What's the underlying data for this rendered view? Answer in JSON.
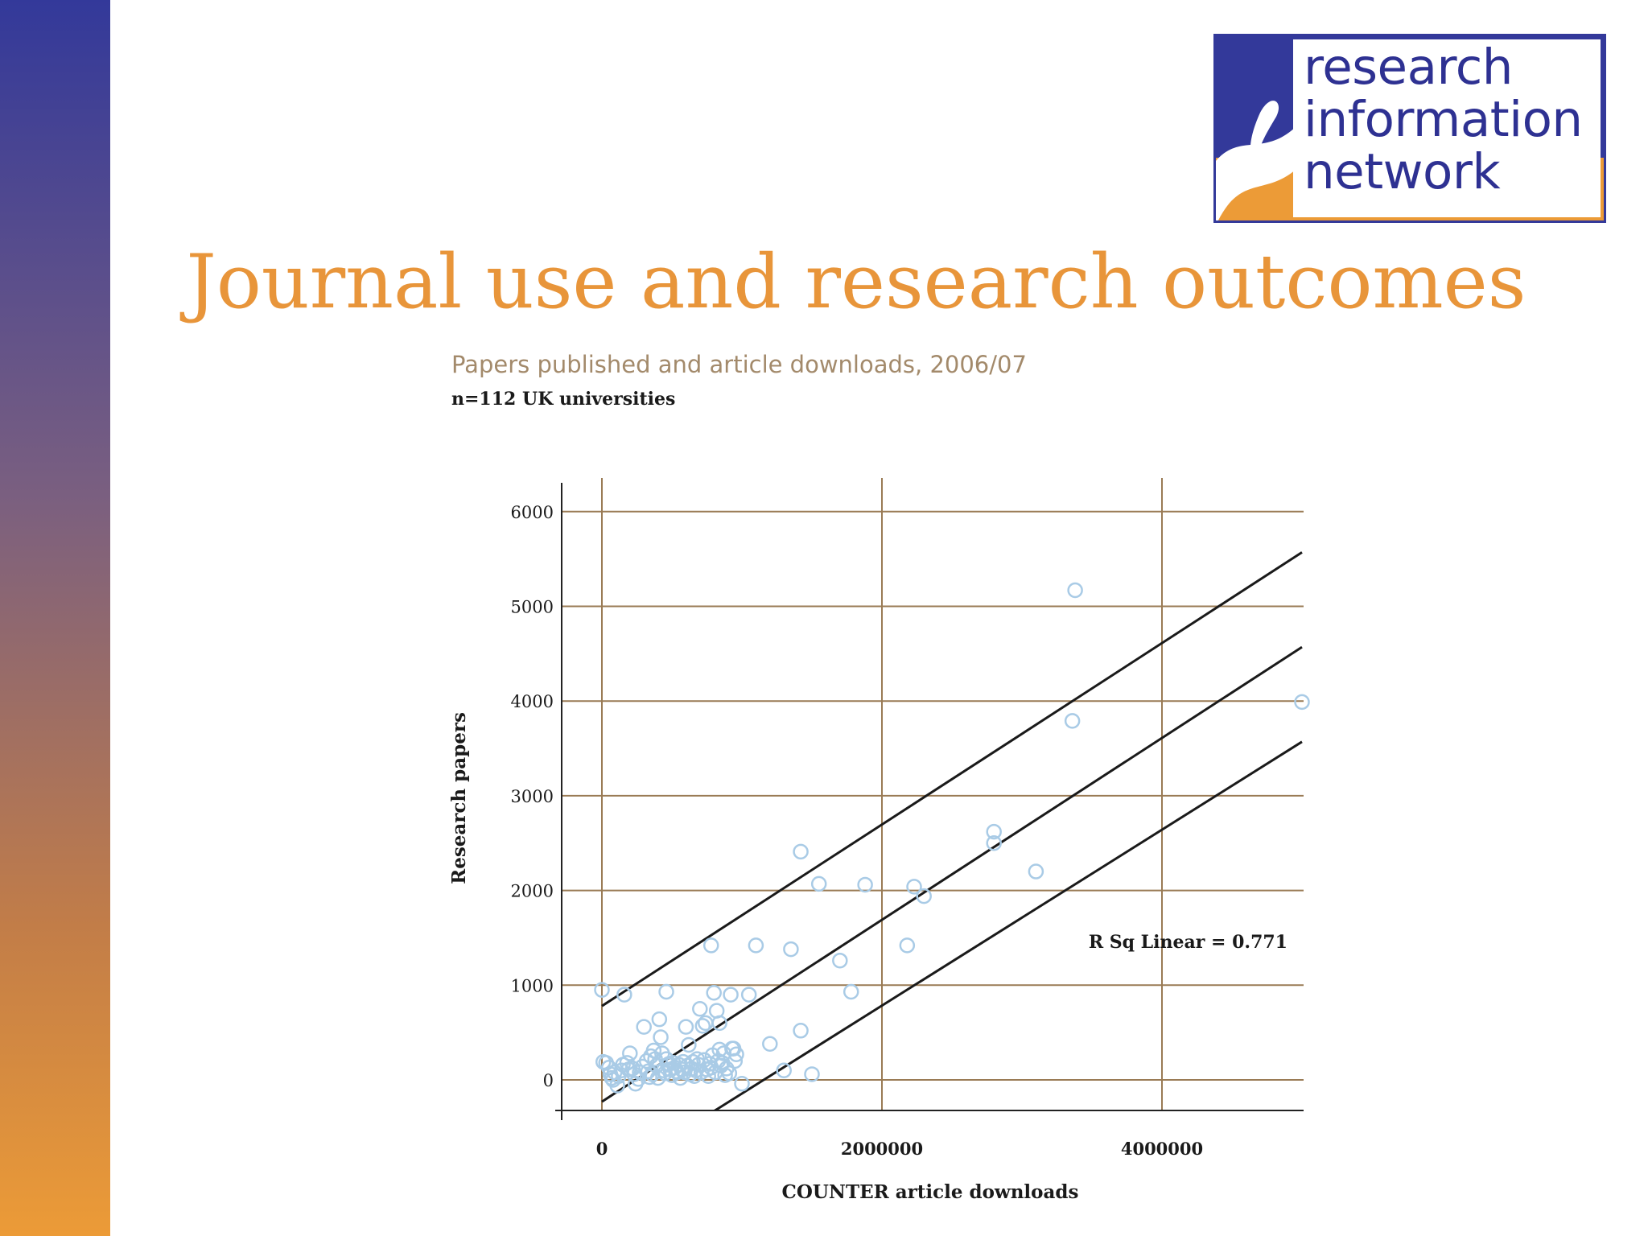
{
  "slide": {
    "title": "Journal use and research outcomes",
    "colors": {
      "accent": "#e8953a",
      "brand_blue": "#33399a",
      "brand_orange": "#ec9b37"
    }
  },
  "logo": {
    "line1": "research",
    "line2": "information",
    "line3": "network"
  },
  "chart_data": {
    "type": "scatter",
    "title": "Papers published and article downloads, 2006/07",
    "subtitle": "n=112 UK universities",
    "xlabel": "COUNTER article downloads",
    "ylabel": "Research papers",
    "xlim": [
      -150000,
      5000000
    ],
    "ylim": [
      -300000,
      6300
    ],
    "x_ticks": [
      0,
      2000000,
      4000000
    ],
    "y_ticks": [
      0,
      1000,
      2000,
      3000,
      4000,
      5000,
      6000
    ],
    "x_tick_labels": [
      "0",
      "2000000",
      "4000000"
    ],
    "y_tick_labels": [
      "0",
      "1000",
      "2000",
      "3000",
      "4000",
      "5000",
      "6000"
    ],
    "annotation": "R Sq Linear = 0.771",
    "grid": true,
    "fit_lines": [
      {
        "role": "upper",
        "x": [
          0,
          5000000
        ],
        "y": [
          780,
          5570
        ]
      },
      {
        "role": "fit",
        "x": [
          0,
          5000000
        ],
        "y": [
          -230,
          4570
        ]
      },
      {
        "role": "lower",
        "x": [
          800000,
          5000000
        ],
        "y": [
          -330,
          3570
        ]
      }
    ],
    "series": [
      {
        "points": [
          [
            0,
            950
          ],
          [
            160000,
            900
          ],
          [
            460000,
            930
          ],
          [
            30000,
            180
          ],
          [
            60000,
            60
          ],
          [
            70000,
            20
          ],
          [
            90000,
            80
          ],
          [
            110000,
            -60
          ],
          [
            140000,
            100
          ],
          [
            180000,
            180
          ],
          [
            200000,
            280
          ],
          [
            220000,
            120
          ],
          [
            240000,
            -40
          ],
          [
            270000,
            80
          ],
          [
            300000,
            560
          ],
          [
            320000,
            200
          ],
          [
            340000,
            30
          ],
          [
            350000,
            250
          ],
          [
            370000,
            310
          ],
          [
            390000,
            150
          ],
          [
            410000,
            640
          ],
          [
            420000,
            450
          ],
          [
            440000,
            100
          ],
          [
            460000,
            220
          ],
          [
            480000,
            170
          ],
          [
            500000,
            50
          ],
          [
            520000,
            130
          ],
          [
            540000,
            80
          ],
          [
            560000,
            20
          ],
          [
            580000,
            190
          ],
          [
            600000,
            560
          ],
          [
            620000,
            370
          ],
          [
            640000,
            120
          ],
          [
            660000,
            40
          ],
          [
            680000,
            220
          ],
          [
            700000,
            750
          ],
          [
            720000,
            570
          ],
          [
            740000,
            600
          ],
          [
            760000,
            40
          ],
          [
            780000,
            130
          ],
          [
            800000,
            920
          ],
          [
            820000,
            730
          ],
          [
            840000,
            600
          ],
          [
            840000,
            320
          ],
          [
            860000,
            180
          ],
          [
            880000,
            50
          ],
          [
            920000,
            900
          ],
          [
            940000,
            330
          ],
          [
            960000,
            270
          ],
          [
            1000000,
            -40
          ],
          [
            1050000,
            900
          ],
          [
            1100000,
            1420
          ],
          [
            1200000,
            380
          ],
          [
            1300000,
            100
          ],
          [
            1350000,
            1380
          ],
          [
            1420000,
            2410
          ],
          [
            1420000,
            520
          ],
          [
            1500000,
            60
          ],
          [
            1550000,
            2070
          ],
          [
            1700000,
            1260
          ],
          [
            1780000,
            930
          ],
          [
            1880000,
            2060
          ],
          [
            2180000,
            1420
          ],
          [
            2230000,
            2040
          ],
          [
            2300000,
            1940
          ],
          [
            2800000,
            2620
          ],
          [
            2800000,
            2500
          ],
          [
            3100000,
            2200
          ],
          [
            3360000,
            3790
          ],
          [
            3380000,
            5170
          ],
          [
            5000000,
            3990
          ],
          [
            780000,
            1420
          ],
          [
            10000,
            190
          ],
          [
            50000,
            130
          ],
          [
            80000,
            0
          ],
          [
            120000,
            40
          ],
          [
            150000,
            160
          ],
          [
            190000,
            110
          ],
          [
            230000,
            60
          ],
          [
            260000,
            10
          ],
          [
            290000,
            140
          ],
          [
            330000,
            90
          ],
          [
            360000,
            60
          ],
          [
            380000,
            220
          ],
          [
            400000,
            20
          ],
          [
            430000,
            280
          ],
          [
            450000,
            70
          ],
          [
            470000,
            160
          ],
          [
            490000,
            110
          ],
          [
            510000,
            180
          ],
          [
            530000,
            90
          ],
          [
            550000,
            160
          ],
          [
            570000,
            110
          ],
          [
            590000,
            80
          ],
          [
            610000,
            150
          ],
          [
            630000,
            60
          ],
          [
            650000,
            190
          ],
          [
            670000,
            100
          ],
          [
            690000,
            160
          ],
          [
            710000,
            80
          ],
          [
            730000,
            210
          ],
          [
            750000,
            110
          ],
          [
            770000,
            170
          ],
          [
            790000,
            260
          ],
          [
            810000,
            80
          ],
          [
            830000,
            200
          ],
          [
            850000,
            150
          ],
          [
            870000,
            280
          ],
          [
            890000,
            120
          ],
          [
            910000,
            70
          ],
          [
            930000,
            330
          ],
          [
            950000,
            200
          ]
        ]
      }
    ]
  }
}
